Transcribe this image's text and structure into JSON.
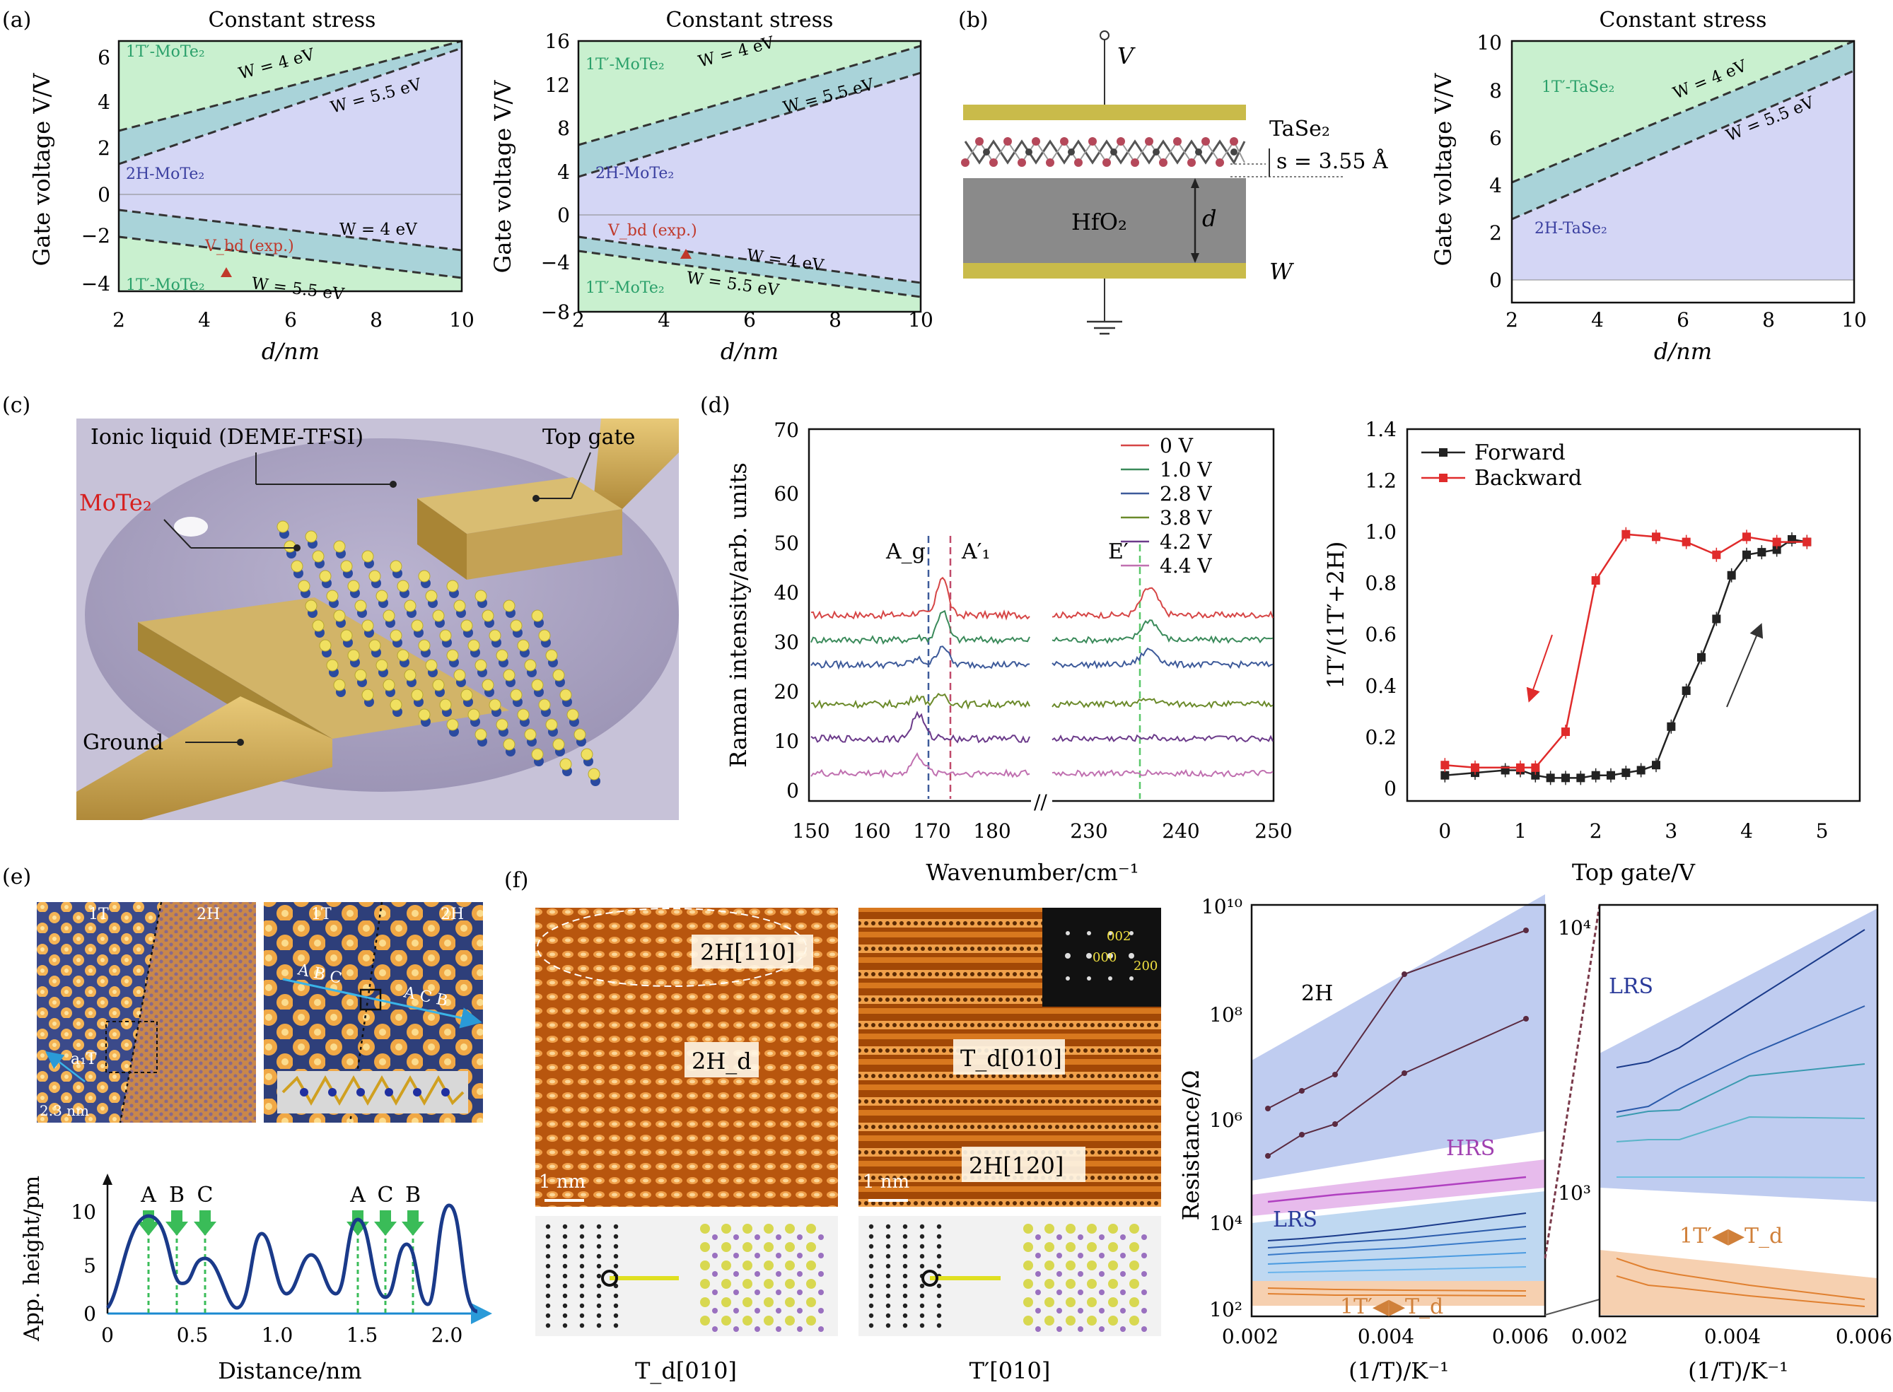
{
  "colors": {
    "phase_1T": "#c9f0cf",
    "phase_2H": "#d4d6f5",
    "band": "#a9cfd8",
    "exp_marker": "#c0392b",
    "forward": "#222222",
    "backward": "#e02b2b",
    "label_green": "#2aa06a",
    "label_blue": "#3a3fa0",
    "red_text": "#d62020"
  },
  "panel_labels": [
    "(a)",
    "(b)",
    "(c)",
    "(d)",
    "(e)",
    "(f)"
  ],
  "a1": {
    "title": "Constant stress",
    "xlabel": "d/nm",
    "ylabel": "Gate voltage V/V",
    "label_1T_top": "1T′-MoTe₂",
    "label_2H": "2H-MoTe₂",
    "label_1T_bottom": "1T′-MoTe₂",
    "w4_top": "W = 4 eV",
    "w55_top": "W = 5.5 eV",
    "w4_bottom": "W = 4 eV",
    "w55_bottom": "W = 5.5 eV",
    "vbd": "V_bd (exp.)",
    "xticks": [
      "2",
      "4",
      "6",
      "8",
      "10"
    ],
    "yticks": [
      "−4",
      "−2",
      "0",
      "2",
      "4",
      "6"
    ]
  },
  "a2": {
    "title": "Constant stress",
    "xlabel": "d/nm",
    "ylabel": "Gate voltage V/V",
    "label_1T_top": "1T′-MoTe₂",
    "label_2H": "2H-MoTe₂",
    "label_1T_bottom": "1T′-MoTe₂",
    "w4_top": "W = 4 eV",
    "w55_top": "W = 5.5 eV",
    "w4_bottom": "W = 4 eV",
    "w55_bottom": "W = 5.5 eV",
    "vbd": "V_bd (exp.)",
    "xticks": [
      "2",
      "4",
      "6",
      "8",
      "10"
    ],
    "yticks": [
      "−8",
      "−4",
      "0",
      "4",
      "8",
      "12",
      "16"
    ]
  },
  "b_schematic": {
    "v": "V",
    "tase2": "TaSe₂",
    "spacing": "s = 3.55 Å",
    "hfo2": "HfO₂",
    "d": "d",
    "w": "W"
  },
  "b_plot": {
    "title": "Constant stress",
    "xlabel": "d/nm",
    "ylabel": "Gate voltage V/V",
    "label_1T": "1T′-TaSe₂",
    "label_2H": "2H-TaSe₂",
    "w4": "W = 4 eV",
    "w55": "W = 5.5 eV",
    "xticks": [
      "2",
      "4",
      "6",
      "8",
      "10"
    ],
    "yticks": [
      "0",
      "2",
      "4",
      "6",
      "8",
      "10"
    ]
  },
  "c": {
    "ionic_liquid": "Ionic liquid (DEME-TFSI)",
    "top_gate": "Top gate",
    "mote2": "MoTe₂",
    "ground": "Ground"
  },
  "d_raman": {
    "ylabel": "Raman intensity/arb. units",
    "xlabel": "Wavenumber/cm⁻¹",
    "xticks_left": [
      "150",
      "160",
      "170",
      "180"
    ],
    "xticks_right": [
      "230",
      "240",
      "250"
    ],
    "yticks": [
      "0",
      "10",
      "20",
      "30",
      "40",
      "50",
      "60",
      "70"
    ],
    "peak_ag": "A_g",
    "peak_a1": "A′₁",
    "peak_e": "E′",
    "legend": [
      "0 V",
      "1.0 V",
      "2.8 V",
      "3.8 V",
      "4.2 V",
      "4.4 V"
    ],
    "series_colors": [
      "#d64545",
      "#3a8a5a",
      "#3d5a9a",
      "#6b8a2a",
      "#6b3a8a",
      "#c070b0"
    ],
    "offsets": [
      35,
      30,
      25,
      17,
      10,
      3
    ]
  },
  "d_ratio": {
    "ylabel": "1T′/(1T′+2H)",
    "xlabel": "Top gate/V",
    "xticks": [
      "0",
      "1",
      "2",
      "3",
      "4",
      "5"
    ],
    "yticks": [
      "0",
      "0.2",
      "0.4",
      "0.6",
      "0.8",
      "1.0",
      "1.2",
      "1.4"
    ],
    "legend_forward": "Forward",
    "legend_backward": "Backward"
  },
  "chart_data": [
    {
      "type": "line",
      "xlabel": "Top gate/V",
      "ylabel": "1T′/(1T′+2H)",
      "xlim": [
        -0.5,
        5.5
      ],
      "ylim": [
        -0.05,
        1.4
      ],
      "series": [
        {
          "name": "Forward",
          "x": [
            0,
            0.4,
            0.8,
            1.0,
            1.2,
            1.4,
            1.6,
            1.8,
            2.0,
            2.2,
            2.4,
            2.6,
            2.8,
            3.0,
            3.2,
            3.4,
            3.6,
            3.8,
            4.0,
            4.2,
            4.4,
            4.6,
            4.8
          ],
          "y": [
            0.05,
            0.06,
            0.07,
            0.07,
            0.05,
            0.04,
            0.04,
            0.04,
            0.05,
            0.05,
            0.06,
            0.07,
            0.09,
            0.24,
            0.38,
            0.51,
            0.66,
            0.83,
            0.91,
            0.92,
            0.93,
            0.97,
            0.96
          ]
        },
        {
          "name": "Backward",
          "x": [
            0,
            0.4,
            1.0,
            1.2,
            1.6,
            2.0,
            2.4,
            2.8,
            3.2,
            3.6,
            4.0,
            4.4,
            4.8
          ],
          "y": [
            0.09,
            0.08,
            0.08,
            0.08,
            0.22,
            0.81,
            0.99,
            0.98,
            0.96,
            0.91,
            0.98,
            0.96,
            0.96
          ]
        }
      ]
    }
  ],
  "e": {
    "label_1T_a": "1T",
    "label_2H_a": "2H",
    "label_1T_b": "1T",
    "label_2H_b": "2H",
    "a1t": "a₁T",
    "scale": "2.3 nm",
    "abc": "A B C",
    "acb": "A C B",
    "ylabel": "App. height/pm",
    "xlabel": "Distance/nm",
    "xticks": [
      "0",
      "0.5",
      "1.0",
      "1.5",
      "2.0"
    ],
    "yticks": [
      "0",
      "5",
      "10"
    ],
    "arrows": [
      "A",
      "B",
      "C",
      "A",
      "C",
      "B"
    ]
  },
  "f": {
    "label_2h110": "2H[110]",
    "label_2hd": "2H_d",
    "label_td010": "T_d[010]",
    "label_2h120": "2H[120]",
    "scale1": "1 nm",
    "scale2": "1 nm",
    "fft_002": "002",
    "fft_000": "000",
    "fft_200": "200",
    "caption_left": "T_d[010]",
    "caption_right": "T′[010]"
  },
  "g_left": {
    "ylabel": "Resistance/Ω",
    "xlabel": "(1/T)/K⁻¹",
    "xticks": [
      "0.002",
      "0.004",
      "0.006"
    ],
    "yticks": [
      "10²",
      "10⁴",
      "10⁶",
      "10⁸",
      "10¹⁰"
    ],
    "label_2h": "2H",
    "label_hrs": "HRS",
    "label_lrs": "LRS",
    "label_1t": "1T′◀▶T_d"
  },
  "g_right": {
    "xlabel": "(1/T)/K⁻¹",
    "xticks": [
      "0.002",
      "0.004",
      "0.006"
    ],
    "yticks": [
      "10³",
      "10⁴"
    ],
    "label_lrs": "LRS",
    "label_1t": "1T′◀▶T_d"
  }
}
